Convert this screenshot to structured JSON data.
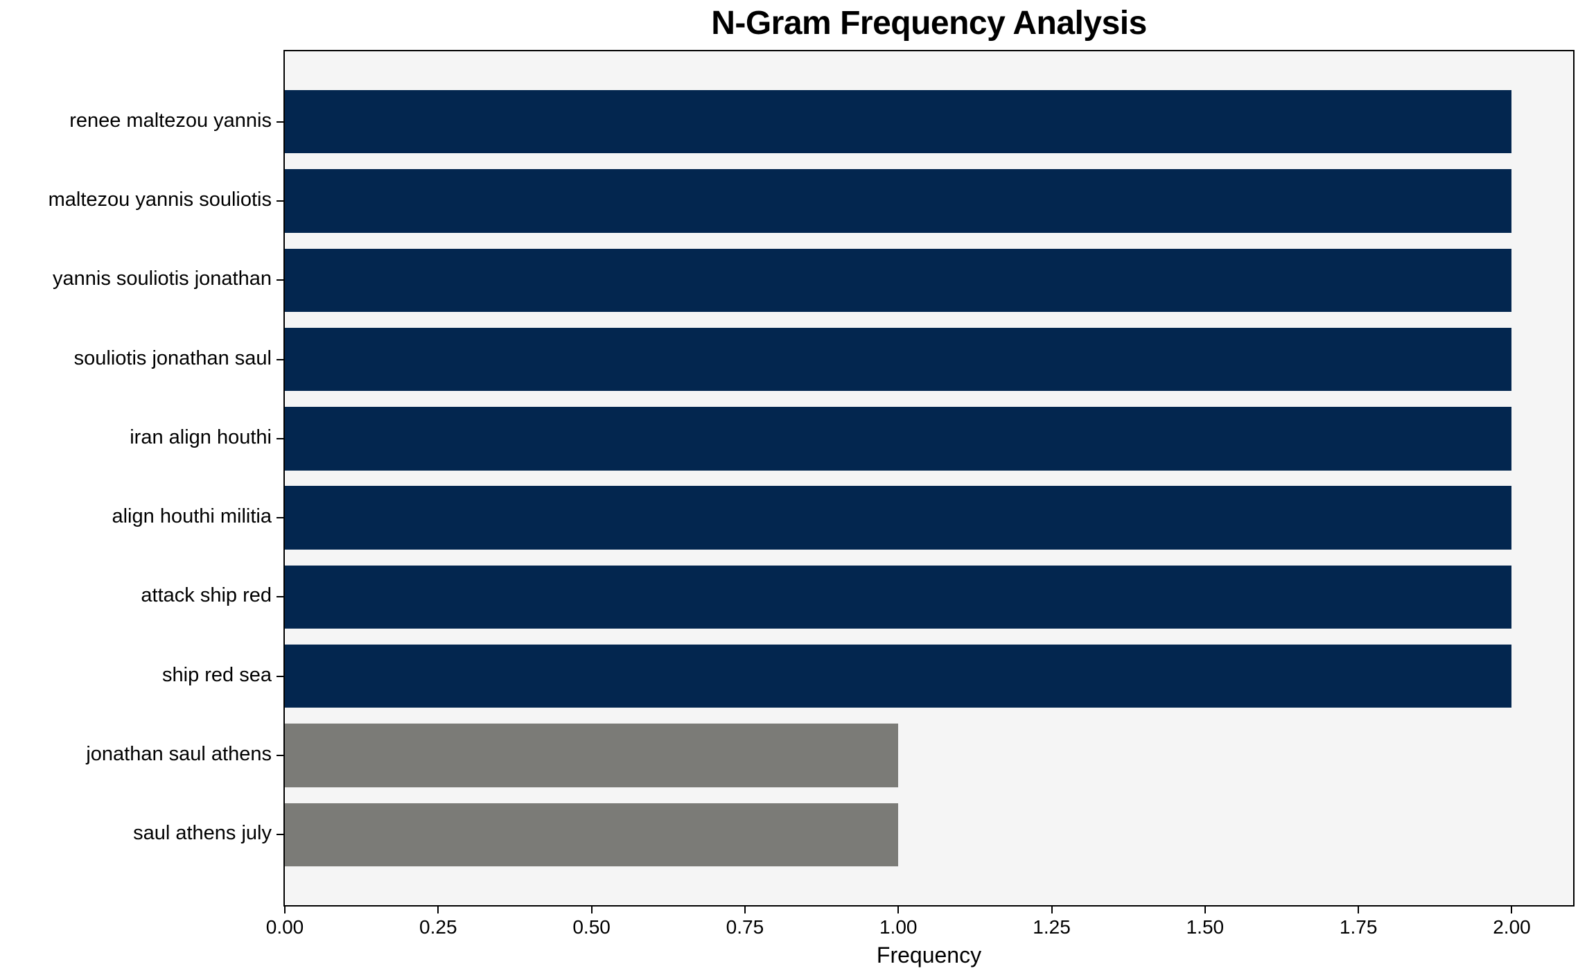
{
  "chart_data": {
    "type": "bar",
    "orientation": "horizontal",
    "title": "N-Gram Frequency Analysis",
    "xlabel": "Frequency",
    "ylabel": "",
    "categories": [
      "renee maltezou yannis",
      "maltezou yannis souliotis",
      "yannis souliotis jonathan",
      "souliotis jonathan saul",
      "iran align houthi",
      "align houthi militia",
      "attack ship red",
      "ship red sea",
      "jonathan saul athens",
      "saul athens july"
    ],
    "values": [
      2,
      2,
      2,
      2,
      2,
      2,
      2,
      2,
      1,
      1
    ],
    "bar_colors": [
      "#03264f",
      "#03264f",
      "#03264f",
      "#03264f",
      "#03264f",
      "#03264f",
      "#03264f",
      "#03264f",
      "#7b7b77",
      "#7b7b77"
    ],
    "x_tick_labels": [
      "0.00",
      "0.25",
      "0.50",
      "0.75",
      "1.00",
      "1.25",
      "1.50",
      "1.75",
      "2.00"
    ],
    "x_tick_values": [
      0,
      0.25,
      0.5,
      0.75,
      1.0,
      1.25,
      1.5,
      1.75,
      2.0
    ],
    "xlim": [
      0,
      2.1
    ],
    "bar_height_ratio": 0.8,
    "grid": false,
    "legend": null,
    "colors": {
      "bar_primary": "#03264f",
      "bar_secondary": "#7b7b77",
      "plot_background": "#f5f5f5",
      "figure_background": "#ffffff",
      "axis": "#000000",
      "text": "#000000"
    }
  }
}
